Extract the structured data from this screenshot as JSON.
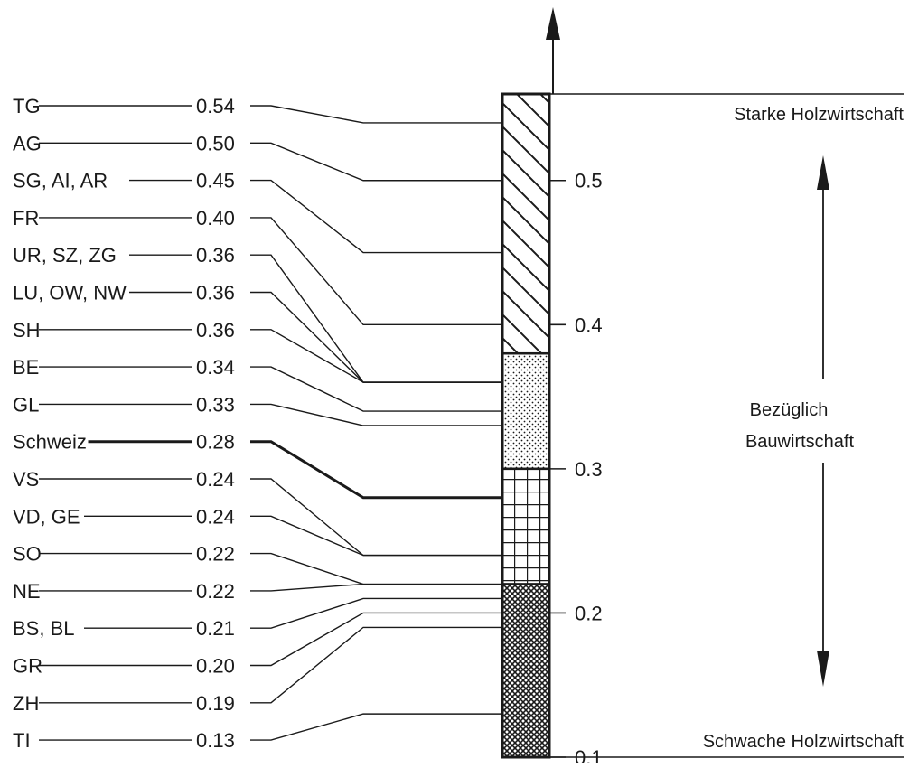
{
  "chart_data": {
    "type": "bar",
    "title": "",
    "xlabel": "",
    "ylabel": "",
    "ylim": [
      0.1,
      0.6
    ],
    "ticks": [
      {
        "value": 0.5,
        "label": "0.5"
      },
      {
        "value": 0.4,
        "label": "0.4"
      },
      {
        "value": 0.3,
        "label": "0.3"
      },
      {
        "value": 0.2,
        "label": "0.2"
      },
      {
        "value": 0.1,
        "label": "0.1"
      }
    ],
    "rows": [
      {
        "label": "TG",
        "value": 0.54,
        "value_label": "0.54"
      },
      {
        "label": "AG",
        "value": 0.5,
        "value_label": "0.50"
      },
      {
        "label": "SG, AI, AR",
        "value": 0.45,
        "value_label": "0.45"
      },
      {
        "label": "FR",
        "value": 0.4,
        "value_label": "0.40"
      },
      {
        "label": "UR, SZ, ZG",
        "value": 0.36,
        "value_label": "0.36"
      },
      {
        "label": "LU, OW, NW",
        "value": 0.36,
        "value_label": "0.36"
      },
      {
        "label": "SH",
        "value": 0.36,
        "value_label": "0.36"
      },
      {
        "label": "BE",
        "value": 0.34,
        "value_label": "0.34"
      },
      {
        "label": "GL",
        "value": 0.33,
        "value_label": "0.33"
      },
      {
        "label": "Schweiz",
        "value": 0.28,
        "value_label": "0.28",
        "highlight": true
      },
      {
        "label": "VS",
        "value": 0.24,
        "value_label": "0.24"
      },
      {
        "label": "VD, GE",
        "value": 0.24,
        "value_label": "0.24"
      },
      {
        "label": "SO",
        "value": 0.22,
        "value_label": "0.22"
      },
      {
        "label": "NE",
        "value": 0.22,
        "value_label": "0.22"
      },
      {
        "label": "BS, BL",
        "value": 0.21,
        "value_label": "0.21"
      },
      {
        "label": "GR",
        "value": 0.2,
        "value_label": "0.20"
      },
      {
        "label": "ZH",
        "value": 0.19,
        "value_label": "0.19"
      },
      {
        "label": "TI",
        "value": 0.13,
        "value_label": "0.13"
      }
    ],
    "bands": [
      {
        "from": 0.38,
        "to": 0.56,
        "pattern": "diagonal-hatch"
      },
      {
        "from": 0.3,
        "to": 0.38,
        "pattern": "dots"
      },
      {
        "from": 0.22,
        "to": 0.3,
        "pattern": "grid"
      },
      {
        "from": 0.1,
        "to": 0.22,
        "pattern": "crosshatch"
      }
    ],
    "annotations": {
      "top": "Starke Holzwirtschaft",
      "bottom": "Schwache Holzwirtschaft",
      "middle_line1": "Bezüglich",
      "middle_line2": "Bauwirtschaft"
    },
    "colors": {
      "ink": "#1a1a1a",
      "background": "#ffffff"
    }
  }
}
